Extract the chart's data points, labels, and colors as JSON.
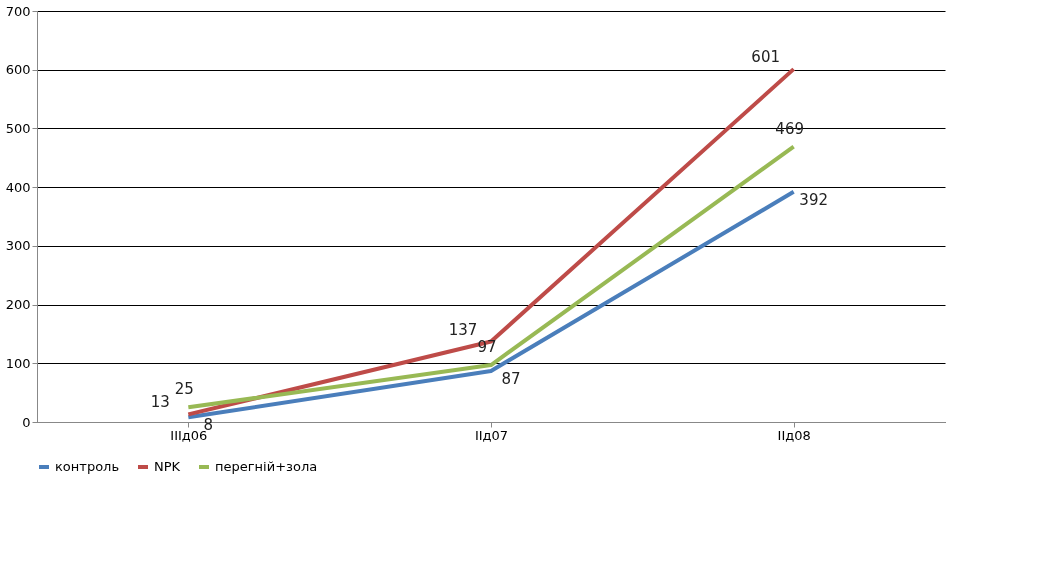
{
  "chart_data": {
    "type": "line",
    "categories": [
      "IIIд06",
      "IIд07",
      "IIд08"
    ],
    "series": [
      {
        "name": "контроль",
        "color": "#4a7ebb",
        "values": [
          8,
          87,
          392
        ]
      },
      {
        "name": "NPK",
        "color": "#be4b48",
        "values": [
          13,
          137,
          601
        ]
      },
      {
        "name": "перегній+зола",
        "color": "#98b954",
        "values": [
          25,
          97,
          469
        ]
      }
    ],
    "ylim": [
      0,
      700
    ],
    "yticks": [
      0,
      100,
      200,
      300,
      400,
      500,
      600,
      700
    ],
    "data_labels": true,
    "grid": "y",
    "legend": "bottom",
    "marker": "none",
    "line_style": "solid"
  }
}
